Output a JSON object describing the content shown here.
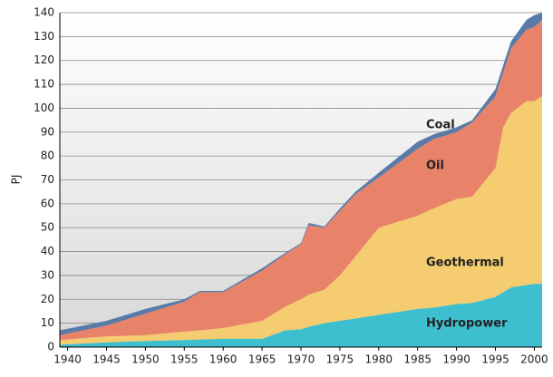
{
  "chart_data": {
    "type": "stacked-area",
    "y_label": "PJ",
    "x": [
      1939,
      1945,
      1950,
      1955,
      1957,
      1960,
      1965,
      1968,
      1970,
      1971,
      1973,
      1975,
      1977,
      1980,
      1985,
      1987,
      1990,
      1992,
      1995,
      1996,
      1997,
      1999,
      2000,
      2001
    ],
    "series": [
      {
        "name": "Hydropower",
        "color": "#3dbfcf",
        "values": [
          1,
          2,
          2.5,
          3,
          3.2,
          3.5,
          3.5,
          7,
          7.5,
          8.5,
          10,
          11,
          12,
          13.5,
          16,
          16.5,
          18,
          18.5,
          21,
          23,
          25,
          26,
          26.5,
          26.5
        ]
      },
      {
        "name": "Geothermal",
        "color": "#f5cc70",
        "values": [
          2,
          2.5,
          2.5,
          3.5,
          3.8,
          4.5,
          7.5,
          10,
          12.5,
          13.5,
          14,
          19,
          26,
          36.5,
          39,
          41.5,
          44,
          44.5,
          54,
          69,
          73,
          77,
          76.5,
          78.5
        ]
      },
      {
        "name": "Oil",
        "color": "#e8836a",
        "values": [
          2,
          4.5,
          9,
          12.5,
          16,
          15,
          21,
          22,
          23,
          29,
          26,
          27,
          26,
          21,
          28,
          29,
          28,
          31,
          30,
          23,
          27,
          30,
          31,
          32
        ]
      },
      {
        "name": "Coal",
        "color": "#5a7aa8",
        "values": [
          2,
          2,
          2,
          1,
          0.5,
          0.5,
          1,
          0.5,
          0.5,
          1,
          0.5,
          1,
          1,
          2,
          3,
          2,
          2,
          1,
          3,
          3,
          3,
          4,
          5,
          3
        ]
      }
    ],
    "xlim": [
      1939,
      2001
    ],
    "xticks": [
      1940,
      1945,
      1950,
      1955,
      1960,
      1965,
      1970,
      1975,
      1980,
      1985,
      1990,
      1995,
      2000
    ],
    "ylim": [
      0,
      140
    ],
    "yticks": [
      0,
      10,
      20,
      30,
      40,
      50,
      60,
      70,
      80,
      90,
      100,
      110,
      120,
      130,
      140
    ],
    "grid": true
  }
}
